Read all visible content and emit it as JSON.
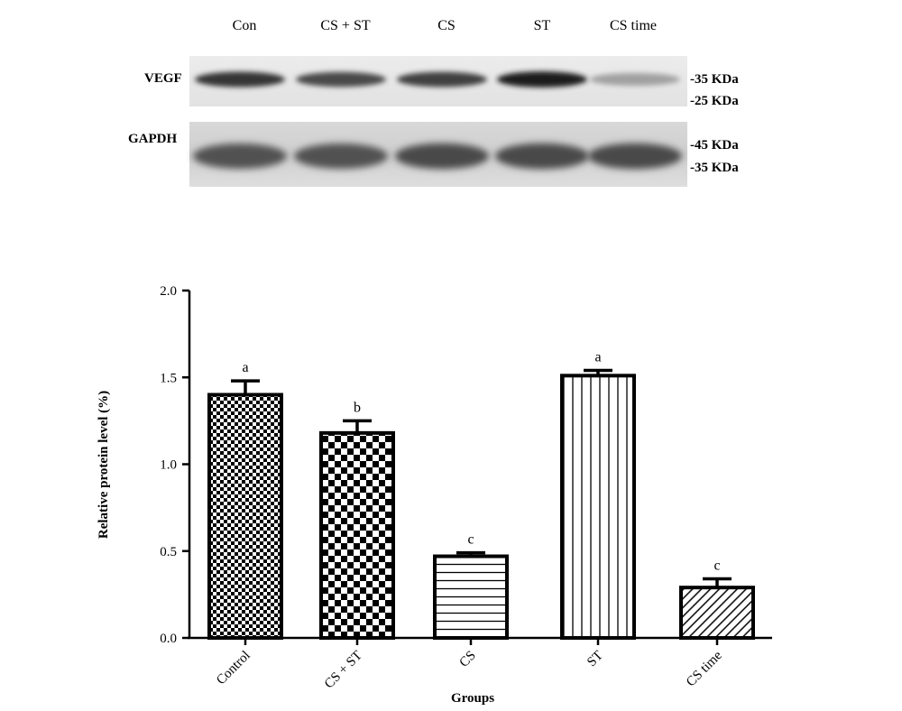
{
  "blot": {
    "lanes": [
      "Con",
      "CS + ST",
      "CS",
      "ST",
      "CS time"
    ],
    "rows": [
      {
        "label": "VEGF",
        "markers": [
          "-35 KDa",
          "-25 KDa"
        ],
        "band_intensity": [
          0.85,
          0.75,
          0.8,
          0.95,
          0.35
        ]
      },
      {
        "label": "GAPDH",
        "markers": [
          "-45 KDa",
          "-35 KDa"
        ],
        "band_intensity": [
          0.8,
          0.8,
          0.85,
          0.85,
          0.85
        ]
      }
    ]
  },
  "chart_data": {
    "type": "bar",
    "categories": [
      "Control",
      "CS + ST",
      "CS",
      "ST",
      "CS time"
    ],
    "values": [
      1.4,
      1.18,
      0.47,
      1.51,
      0.29
    ],
    "errors": [
      0.08,
      0.07,
      0.02,
      0.03,
      0.05
    ],
    "significance": [
      "a",
      "b",
      "c",
      "a",
      "c"
    ],
    "patterns": [
      "fine-checker",
      "coarse-checker",
      "horizontal-lines",
      "vertical-lines",
      "diagonal-lines"
    ],
    "xlabel": "Groups",
    "ylabel": "Relative protein level (%)",
    "ylim": [
      0,
      2.0
    ],
    "yticks": [
      "0.0",
      "0.5",
      "1.0",
      "1.5",
      "2.0"
    ]
  }
}
